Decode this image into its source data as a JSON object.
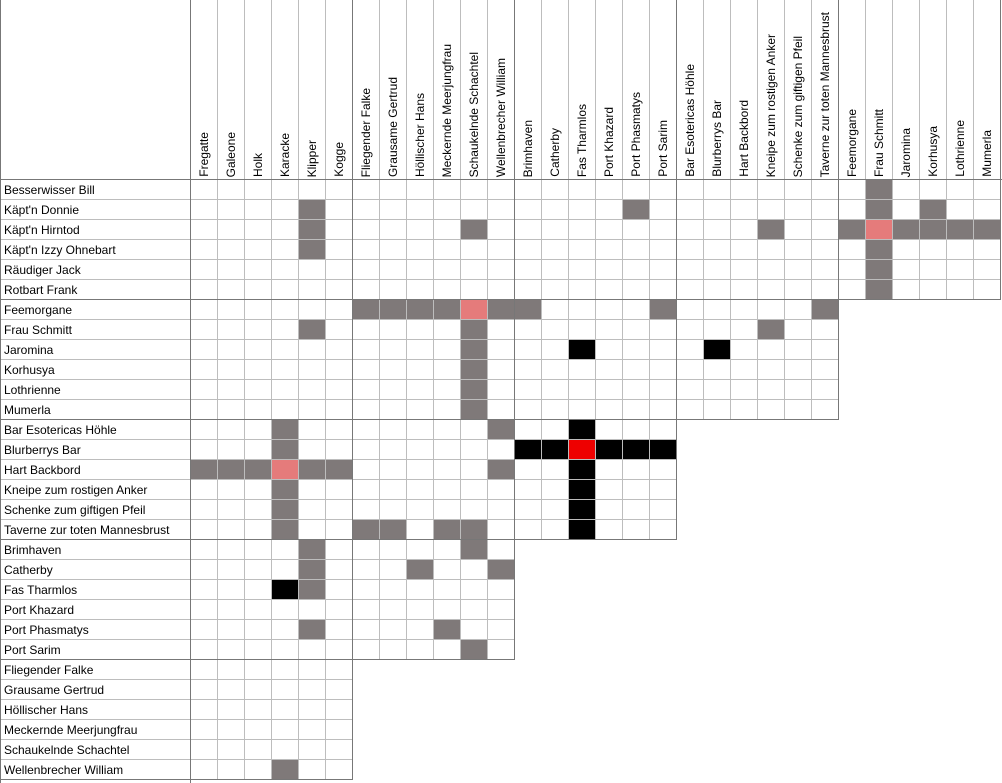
{
  "columns": [
    "Fregatte",
    "Galeone",
    "Holk",
    "Karacke",
    "Klipper",
    "Kogge",
    "Fliegender Falke",
    "Grausame Gertrud",
    "Höllischer Hans",
    "Meckernde Meerjungfrau",
    "Schaukelnde Schachtel",
    "Wellenbrecher William",
    "Brimhaven",
    "Catherby",
    "Fas Tharmlos",
    "Port Khazard",
    "Port Phasmatys",
    "Port Sarim",
    "Bar Esotericas Höhle",
    "Blurberrys Bar",
    "Hart Backbord",
    "Kneipe zum rostigen Anker",
    "Schenke zum giftigen Pfeil",
    "Taverne zur toten Mannesbrust",
    "Feemorgane",
    "Frau Schmitt",
    "Jaromina",
    "Korhusya",
    "Lothrienne",
    "Mumerla"
  ],
  "rows": [
    "Besserwisser Bill",
    "Käpt'n Donnie",
    "Käpt'n Hirntod",
    "Käpt'n Izzy Ohnebart",
    "Räudiger Jack",
    "Rotbart Frank",
    "Feemorgane",
    "Frau Schmitt",
    "Jaromina",
    "Korhusya",
    "Lothrienne",
    "Mumerla",
    "Bar Esotericas Höhle",
    "Blurberrys Bar",
    "Hart Backbord",
    "Kneipe zum rostigen Anker",
    "Schenke zum giftigen Pfeil",
    "Taverne zur toten Mannesbrust",
    "Brimhaven",
    "Catherby",
    "Fas Tharmlos",
    "Port Khazard",
    "Port Phasmatys",
    "Port Sarim",
    "Fliegender Falke",
    "Grausame Gertrud",
    "Höllischer Hans",
    "Meckernde Meerjungfrau",
    "Schaukelnde Schachtel",
    "Wellenbrecher William"
  ],
  "mark_legend": {
    "g": "excluded",
    "b": "confirmed",
    "p": "current-excluded",
    "r": "current-confirmed"
  },
  "colors": {
    "g": "#7f7979",
    "b": "#000000",
    "p": "#e57b7b",
    "r": "#ee0000"
  },
  "marks": [
    [
      0,
      25,
      "g"
    ],
    [
      1,
      4,
      "g"
    ],
    [
      1,
      16,
      "g"
    ],
    [
      1,
      25,
      "g"
    ],
    [
      1,
      27,
      "g"
    ],
    [
      2,
      4,
      "g"
    ],
    [
      2,
      10,
      "g"
    ],
    [
      2,
      21,
      "g"
    ],
    [
      2,
      24,
      "g"
    ],
    [
      2,
      25,
      "p"
    ],
    [
      2,
      26,
      "g"
    ],
    [
      2,
      27,
      "g"
    ],
    [
      2,
      28,
      "g"
    ],
    [
      2,
      29,
      "g"
    ],
    [
      3,
      4,
      "g"
    ],
    [
      3,
      25,
      "g"
    ],
    [
      4,
      25,
      "g"
    ],
    [
      5,
      25,
      "g"
    ],
    [
      6,
      6,
      "g"
    ],
    [
      6,
      7,
      "g"
    ],
    [
      6,
      8,
      "g"
    ],
    [
      6,
      9,
      "g"
    ],
    [
      6,
      10,
      "p"
    ],
    [
      6,
      11,
      "g"
    ],
    [
      6,
      12,
      "g"
    ],
    [
      6,
      17,
      "g"
    ],
    [
      6,
      23,
      "g"
    ],
    [
      7,
      4,
      "g"
    ],
    [
      7,
      10,
      "g"
    ],
    [
      7,
      21,
      "g"
    ],
    [
      8,
      10,
      "g"
    ],
    [
      8,
      14,
      "b"
    ],
    [
      8,
      19,
      "b"
    ],
    [
      9,
      10,
      "g"
    ],
    [
      10,
      10,
      "g"
    ],
    [
      11,
      10,
      "g"
    ],
    [
      12,
      3,
      "g"
    ],
    [
      12,
      11,
      "g"
    ],
    [
      12,
      14,
      "b"
    ],
    [
      13,
      3,
      "g"
    ],
    [
      13,
      12,
      "b"
    ],
    [
      13,
      13,
      "b"
    ],
    [
      13,
      14,
      "r"
    ],
    [
      13,
      15,
      "b"
    ],
    [
      13,
      16,
      "b"
    ],
    [
      13,
      17,
      "b"
    ],
    [
      14,
      0,
      "g"
    ],
    [
      14,
      1,
      "g"
    ],
    [
      14,
      2,
      "g"
    ],
    [
      14,
      3,
      "p"
    ],
    [
      14,
      4,
      "g"
    ],
    [
      14,
      5,
      "g"
    ],
    [
      14,
      11,
      "g"
    ],
    [
      14,
      14,
      "b"
    ],
    [
      15,
      3,
      "g"
    ],
    [
      15,
      14,
      "b"
    ],
    [
      16,
      3,
      "g"
    ],
    [
      16,
      14,
      "b"
    ],
    [
      17,
      3,
      "g"
    ],
    [
      17,
      6,
      "g"
    ],
    [
      17,
      7,
      "g"
    ],
    [
      17,
      9,
      "g"
    ],
    [
      17,
      10,
      "g"
    ],
    [
      17,
      14,
      "b"
    ],
    [
      18,
      4,
      "g"
    ],
    [
      18,
      10,
      "g"
    ],
    [
      19,
      4,
      "g"
    ],
    [
      19,
      8,
      "g"
    ],
    [
      19,
      11,
      "g"
    ],
    [
      20,
      3,
      "b"
    ],
    [
      20,
      4,
      "g"
    ],
    [
      22,
      4,
      "g"
    ],
    [
      22,
      9,
      "g"
    ],
    [
      23,
      10,
      "g"
    ],
    [
      29,
      3,
      "g"
    ]
  ]
}
